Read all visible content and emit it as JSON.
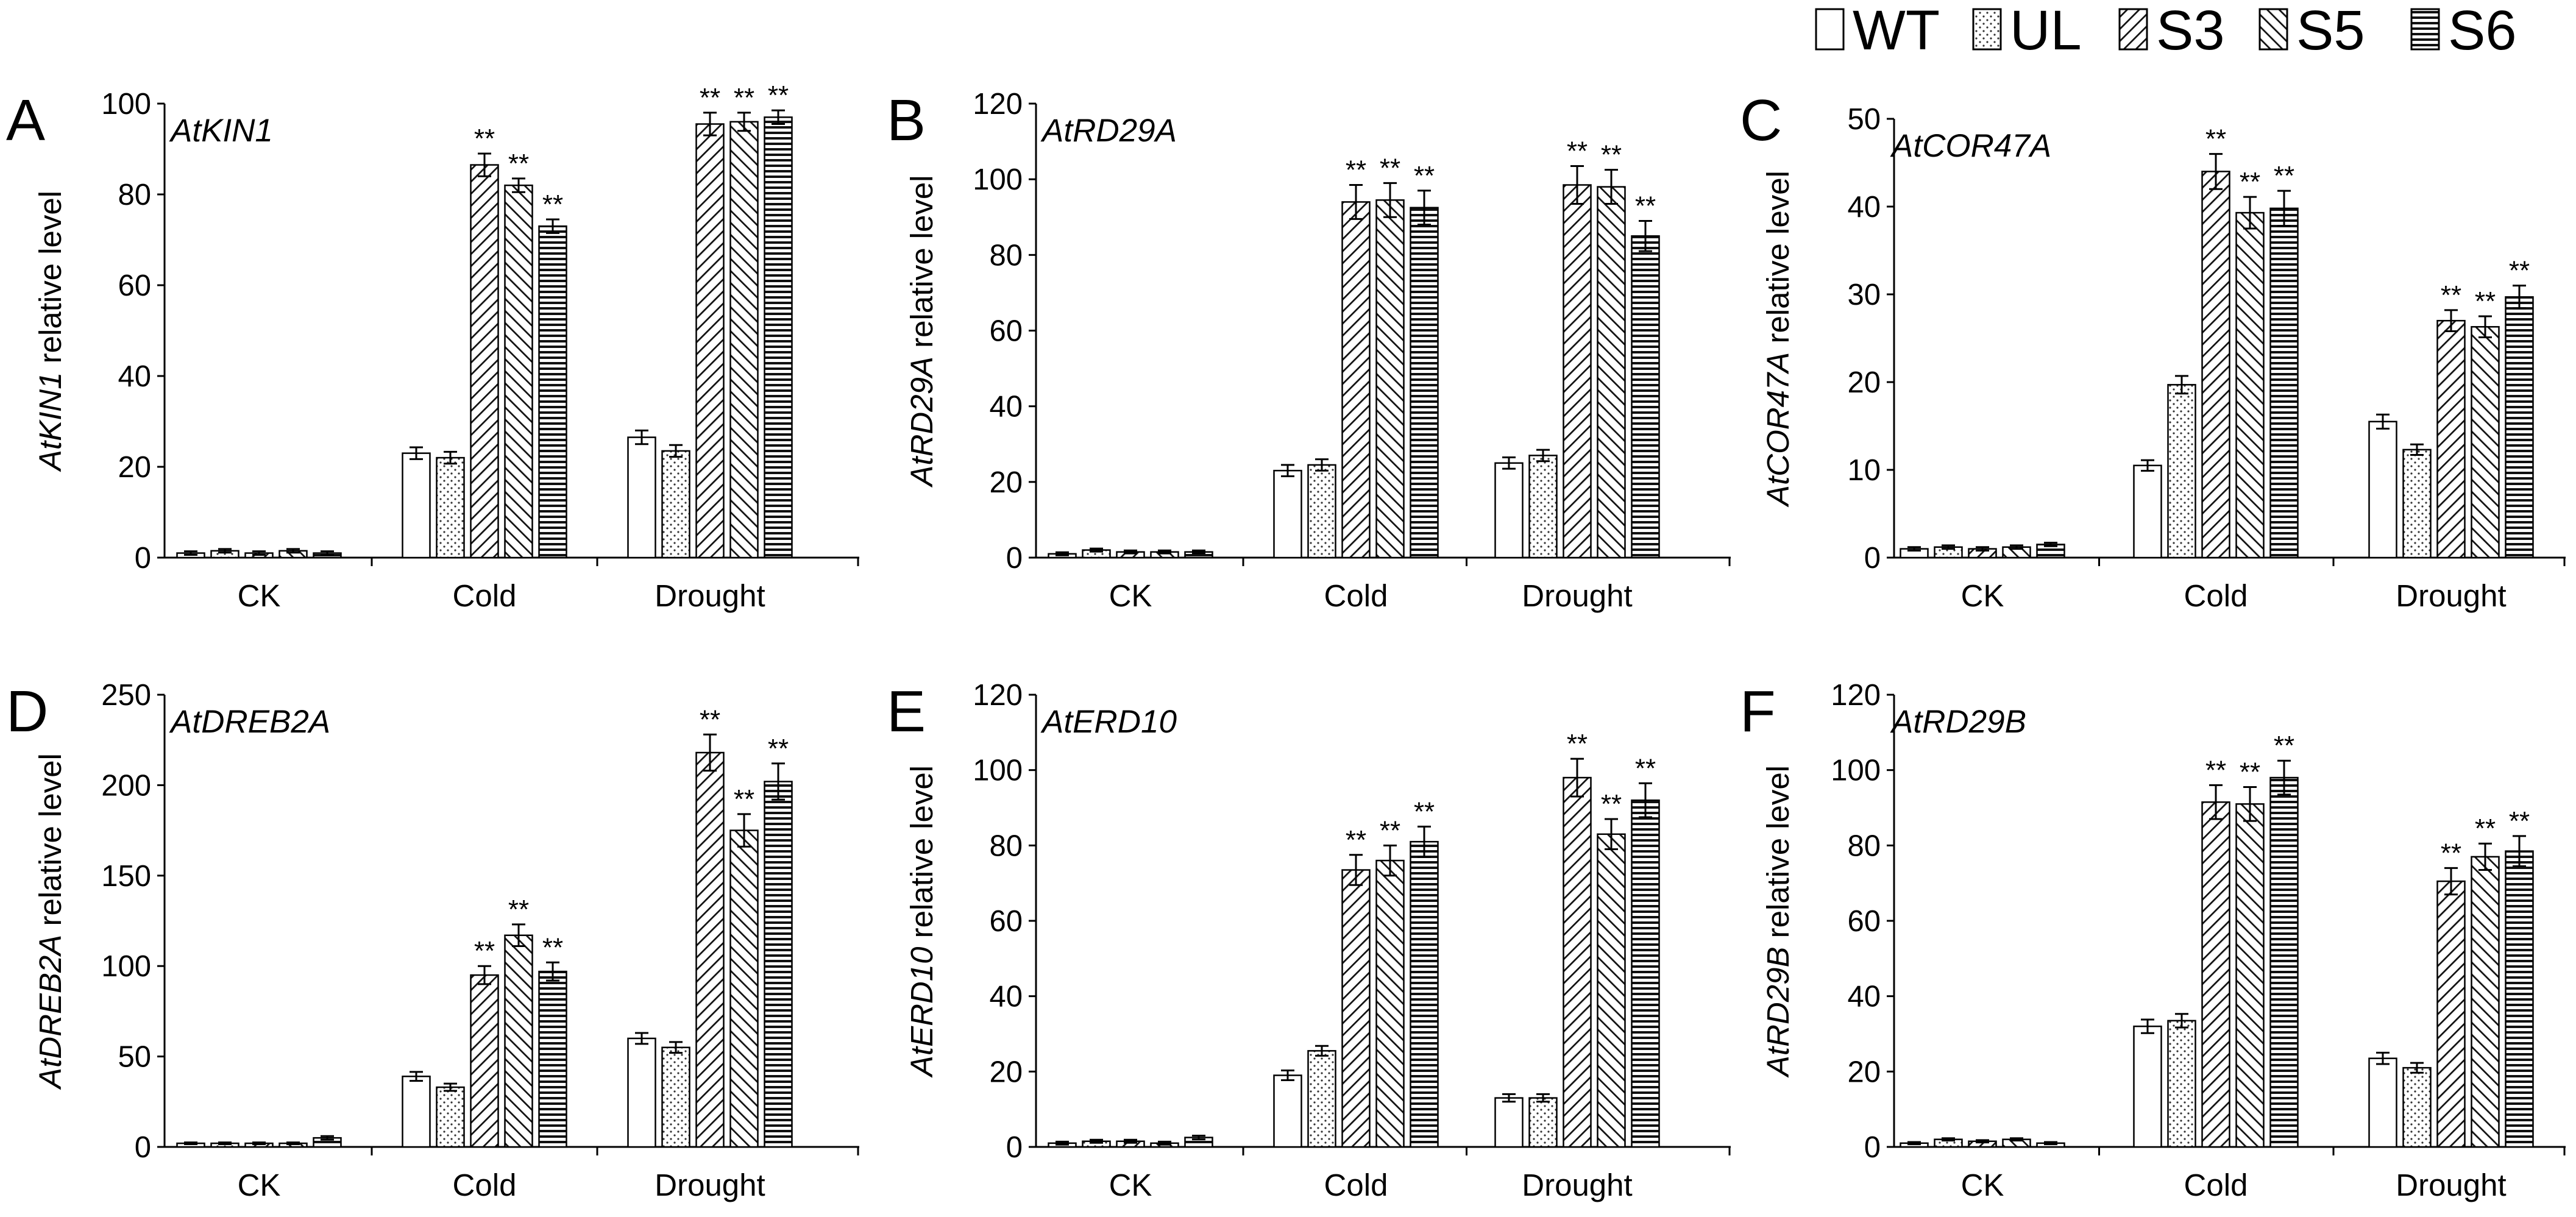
{
  "figure": {
    "legend": [
      "WT",
      "UL",
      "S3",
      "S5",
      "S6"
    ],
    "patterns": [
      "empty",
      "dots",
      "back-diagonal",
      "forward-diagonal",
      "horizontal"
    ],
    "colors": {
      "bar_fill": "#ffffff",
      "stroke": "#000000",
      "pattern": "#222222"
    }
  },
  "chart_data": [
    {
      "type": "bar",
      "panel": "A",
      "gene": "AtKIN1",
      "ylabel_gene": "AtKIN1",
      "ylabel_suffix": " relative level",
      "categories": [
        "CK",
        "Cold",
        "Drought"
      ],
      "ylim": [
        0,
        100
      ],
      "yticks": [
        0,
        20,
        40,
        60,
        80,
        100
      ],
      "series": [
        {
          "name": "WT",
          "values": [
            1,
            23,
            26.5
          ],
          "errors": [
            0.4,
            1.3,
            1.5
          ]
        },
        {
          "name": "UL",
          "values": [
            1.5,
            22,
            23.5
          ],
          "errors": [
            0.4,
            1.3,
            1.3
          ]
        },
        {
          "name": "S3",
          "values": [
            1,
            86.5,
            95.5
          ],
          "errors": [
            0.4,
            2.5,
            2.5
          ]
        },
        {
          "name": "S5",
          "values": [
            1.5,
            82,
            96
          ],
          "errors": [
            0.4,
            1.5,
            2
          ]
        },
        {
          "name": "S6",
          "values": [
            1,
            73,
            97
          ],
          "errors": [
            0.4,
            1.5,
            1.5
          ]
        }
      ],
      "significance": [
        [
          "",
          "",
          ""
        ],
        [
          "",
          "",
          ""
        ],
        [
          "",
          "**",
          "**"
        ],
        [
          "",
          "**",
          "**"
        ],
        [
          "",
          "**",
          "**"
        ]
      ]
    },
    {
      "type": "bar",
      "panel": "B",
      "gene": "AtRD29A",
      "ylabel_gene": "AtRD29A",
      "ylabel_suffix": " relative level",
      "categories": [
        "CK",
        "Cold",
        "Drought"
      ],
      "ylim": [
        0,
        120
      ],
      "yticks": [
        0,
        20,
        40,
        60,
        80,
        100,
        120
      ],
      "series": [
        {
          "name": "WT",
          "values": [
            1,
            23,
            25
          ],
          "errors": [
            0.4,
            1.5,
            1.5
          ]
        },
        {
          "name": "UL",
          "values": [
            2,
            24.5,
            27
          ],
          "errors": [
            0.4,
            1.5,
            1.5
          ]
        },
        {
          "name": "S3",
          "values": [
            1.5,
            94,
            98.5
          ],
          "errors": [
            0.4,
            4.5,
            5
          ]
        },
        {
          "name": "S5",
          "values": [
            1.5,
            94.5,
            98
          ],
          "errors": [
            0.4,
            4.5,
            4.5
          ]
        },
        {
          "name": "S6",
          "values": [
            1.5,
            92.5,
            85
          ],
          "errors": [
            0.4,
            4.5,
            4
          ]
        }
      ],
      "significance": [
        [
          "",
          "",
          ""
        ],
        [
          "",
          "",
          ""
        ],
        [
          "",
          "**",
          "**"
        ],
        [
          "",
          "**",
          "**"
        ],
        [
          "",
          "**",
          "**"
        ]
      ]
    },
    {
      "type": "bar",
      "panel": "C",
      "gene": "AtCOR47A",
      "ylabel_gene": "AtCOR47A",
      "ylabel_suffix": " relative level",
      "categories": [
        "CK",
        "Cold",
        "Drought"
      ],
      "ylim": [
        0,
        50
      ],
      "yticks": [
        0,
        10,
        20,
        30,
        40,
        50
      ],
      "series": [
        {
          "name": "WT",
          "values": [
            1,
            10.5,
            15.5
          ],
          "errors": [
            0.2,
            0.6,
            0.8
          ]
        },
        {
          "name": "UL",
          "values": [
            1.2,
            19.7,
            12.3
          ],
          "errors": [
            0.2,
            1,
            0.6
          ]
        },
        {
          "name": "S3",
          "values": [
            1,
            44,
            27
          ],
          "errors": [
            0.2,
            2,
            1.2
          ]
        },
        {
          "name": "S5",
          "values": [
            1.2,
            39.3,
            26.3
          ],
          "errors": [
            0.2,
            1.8,
            1.2
          ]
        },
        {
          "name": "S6",
          "values": [
            1.5,
            39.8,
            29.7
          ],
          "errors": [
            0.2,
            2,
            1.3
          ]
        }
      ],
      "significance": [
        [
          "",
          "",
          ""
        ],
        [
          "",
          "",
          ""
        ],
        [
          "",
          "**",
          "**"
        ],
        [
          "",
          "**",
          "**"
        ],
        [
          "",
          "**",
          "**"
        ]
      ]
    },
    {
      "type": "bar",
      "panel": "D",
      "gene": "AtDREB2A",
      "ylabel_gene": "AtDREB2A",
      "ylabel_suffix": " relative level",
      "categories": [
        "CK",
        "Cold",
        "Drought"
      ],
      "ylim": [
        0,
        250
      ],
      "yticks": [
        0,
        50,
        100,
        150,
        200,
        250
      ],
      "series": [
        {
          "name": "WT",
          "values": [
            2,
            39,
            60
          ],
          "errors": [
            0.5,
            2.5,
            3
          ]
        },
        {
          "name": "UL",
          "values": [
            2,
            33,
            55
          ],
          "errors": [
            0.5,
            2,
            3
          ]
        },
        {
          "name": "S3",
          "values": [
            2,
            95,
            218
          ],
          "errors": [
            0.5,
            5,
            10
          ]
        },
        {
          "name": "S5",
          "values": [
            2,
            117,
            175
          ],
          "errors": [
            0.5,
            6,
            9
          ]
        },
        {
          "name": "S6",
          "values": [
            5,
            97,
            202
          ],
          "errors": [
            1,
            5,
            10
          ]
        }
      ],
      "significance": [
        [
          "",
          "",
          ""
        ],
        [
          "",
          "",
          ""
        ],
        [
          "",
          "**",
          "**"
        ],
        [
          "",
          "**",
          "**"
        ],
        [
          "",
          "**",
          "**"
        ]
      ]
    },
    {
      "type": "bar",
      "panel": "E",
      "gene": "AtERD10",
      "ylabel_gene": "AtERD10",
      "ylabel_suffix": " relative level",
      "categories": [
        "CK",
        "Cold",
        "Drought"
      ],
      "ylim": [
        0,
        120
      ],
      "yticks": [
        0,
        20,
        40,
        60,
        80,
        100,
        120
      ],
      "series": [
        {
          "name": "WT",
          "values": [
            1,
            19,
            13
          ],
          "errors": [
            0.4,
            1.3,
            1
          ]
        },
        {
          "name": "UL",
          "values": [
            1.5,
            25.5,
            13
          ],
          "errors": [
            0.4,
            1.3,
            1
          ]
        },
        {
          "name": "S3",
          "values": [
            1.5,
            73.5,
            98
          ],
          "errors": [
            0.4,
            4,
            5
          ]
        },
        {
          "name": "S5",
          "values": [
            1,
            76,
            83
          ],
          "errors": [
            0.4,
            4,
            4
          ]
        },
        {
          "name": "S6",
          "values": [
            2.5,
            81,
            92
          ],
          "errors": [
            0.5,
            4,
            4.5
          ]
        }
      ],
      "significance": [
        [
          "",
          "",
          ""
        ],
        [
          "",
          "",
          ""
        ],
        [
          "",
          "**",
          "**"
        ],
        [
          "",
          "**",
          "**"
        ],
        [
          "",
          "**",
          "**"
        ]
      ]
    },
    {
      "type": "bar",
      "panel": "F",
      "gene": "AtRD29B",
      "ylabel_gene": "AtRD29B",
      "ylabel_suffix": " relative level",
      "categories": [
        "CK",
        "Cold",
        "Drought"
      ],
      "ylim": [
        0,
        120
      ],
      "yticks": [
        0,
        20,
        40,
        60,
        80,
        100,
        120
      ],
      "series": [
        {
          "name": "WT",
          "values": [
            1,
            32,
            23.5
          ],
          "errors": [
            0.3,
            1.8,
            1.5
          ]
        },
        {
          "name": "UL",
          "values": [
            2,
            33.5,
            21
          ],
          "errors": [
            0.3,
            1.8,
            1.3
          ]
        },
        {
          "name": "S3",
          "values": [
            1.5,
            91.5,
            70.5
          ],
          "errors": [
            0.3,
            4.5,
            3.5
          ]
        },
        {
          "name": "S5",
          "values": [
            2,
            91,
            77
          ],
          "errors": [
            0.3,
            4.5,
            3.5
          ]
        },
        {
          "name": "S6",
          "values": [
            1,
            98,
            78.5
          ],
          "errors": [
            0.3,
            4.5,
            4
          ]
        }
      ],
      "significance": [
        [
          "",
          "",
          ""
        ],
        [
          "",
          "",
          ""
        ],
        [
          "",
          "**",
          "**"
        ],
        [
          "",
          "**",
          "**"
        ],
        [
          "",
          "**",
          "**"
        ]
      ]
    }
  ]
}
